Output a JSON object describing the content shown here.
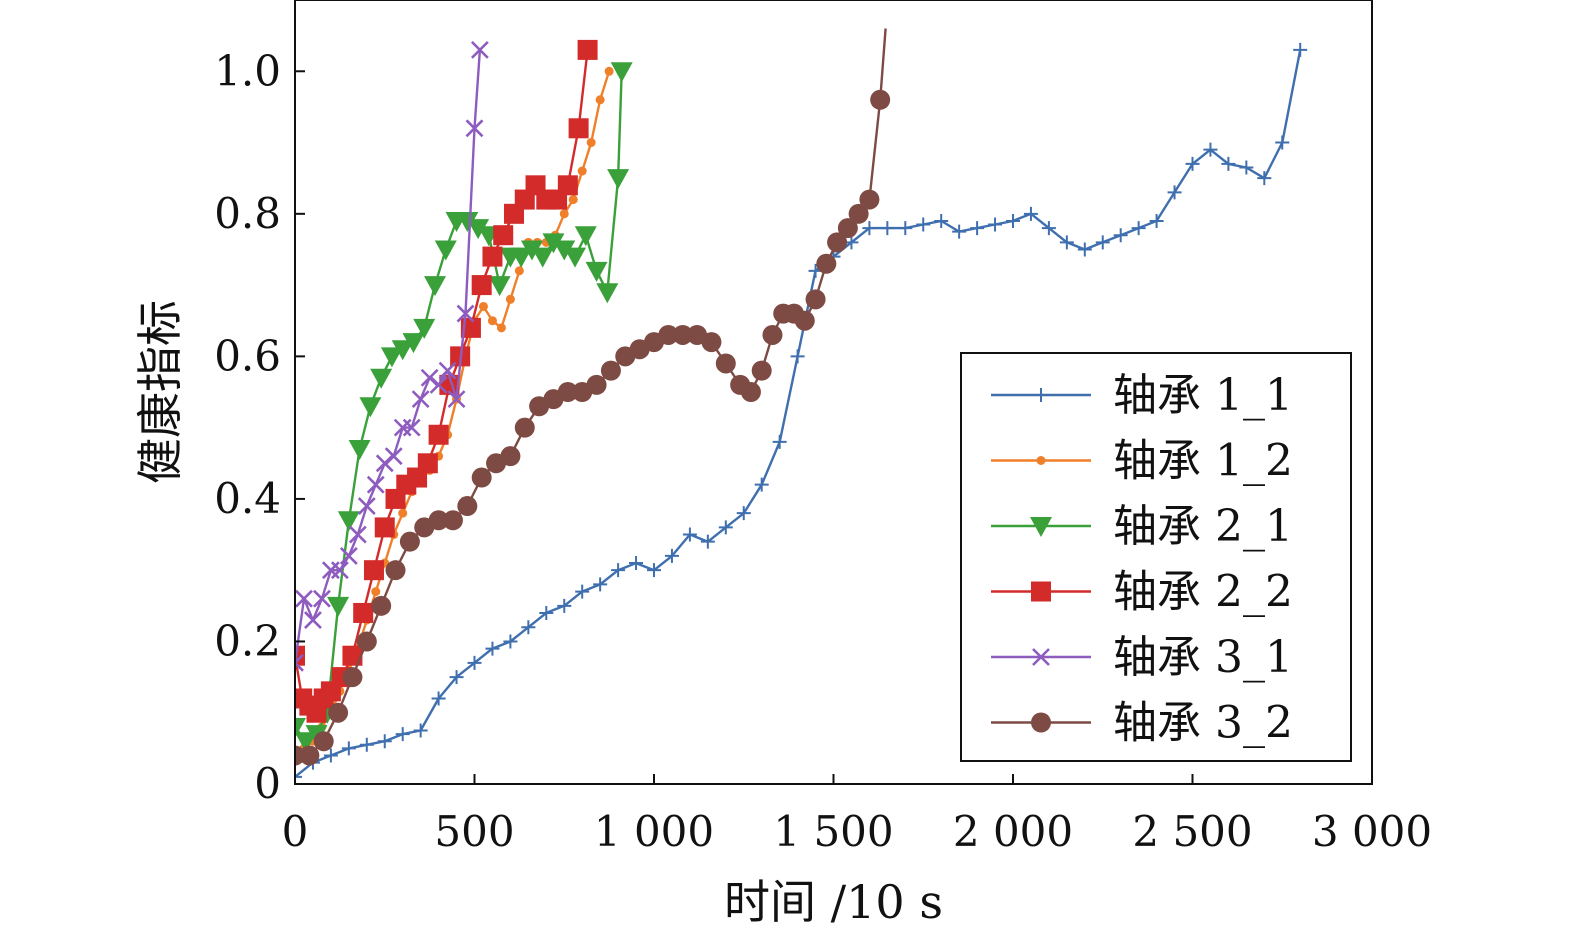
{
  "chart_data": {
    "type": "line",
    "title": "",
    "xlabel": "时间 /10 s",
    "ylabel": "健康指标",
    "xlim": [
      0,
      3000
    ],
    "ylim": [
      0,
      1.1
    ],
    "xticks": [
      0,
      500,
      1000,
      1500,
      2000,
      2500,
      3000
    ],
    "xtick_labels": [
      "0",
      "500",
      "1 000",
      "1 500",
      "2 000",
      "2 500",
      "3 000"
    ],
    "yticks": [
      0,
      0.2,
      0.4,
      0.6,
      0.8,
      1.0
    ],
    "ytick_labels": [
      "0",
      "0.2",
      "0.4",
      "0.6",
      "0.8",
      "1.0"
    ],
    "legend_position": "lower-right",
    "grid": false,
    "series": [
      {
        "name": "轴承 1_1",
        "color": "#3f6fae",
        "marker": "plus",
        "x": [
          0,
          50,
          100,
          150,
          200,
          250,
          300,
          350,
          400,
          450,
          500,
          550,
          600,
          650,
          700,
          750,
          800,
          850,
          900,
          950,
          1000,
          1050,
          1100,
          1150,
          1200,
          1250,
          1300,
          1350,
          1400,
          1450,
          1500,
          1550,
          1600,
          1650,
          1700,
          1750,
          1800,
          1850,
          1900,
          1950,
          2000,
          2050,
          2100,
          2150,
          2200,
          2250,
          2300,
          2350,
          2400,
          2450,
          2500,
          2550,
          2600,
          2650,
          2700,
          2750,
          2800
        ],
        "y": [
          0.01,
          0.03,
          0.04,
          0.05,
          0.055,
          0.06,
          0.07,
          0.075,
          0.12,
          0.15,
          0.17,
          0.19,
          0.2,
          0.22,
          0.24,
          0.25,
          0.27,
          0.28,
          0.3,
          0.31,
          0.3,
          0.32,
          0.35,
          0.34,
          0.36,
          0.38,
          0.42,
          0.48,
          0.6,
          0.72,
          0.74,
          0.76,
          0.78,
          0.78,
          0.78,
          0.785,
          0.79,
          0.775,
          0.78,
          0.785,
          0.79,
          0.8,
          0.78,
          0.76,
          0.75,
          0.76,
          0.77,
          0.78,
          0.79,
          0.83,
          0.87,
          0.89,
          0.87,
          0.865,
          0.85,
          0.9,
          1.03
        ]
      },
      {
        "name": "轴承 1_2",
        "color": "#f07f2a",
        "marker": "dot",
        "x": [
          0,
          25,
          50,
          75,
          100,
          125,
          150,
          175,
          200,
          225,
          250,
          275,
          300,
          325,
          350,
          375,
          400,
          425,
          450,
          475,
          500,
          525,
          550,
          575,
          600,
          625,
          650,
          675,
          700,
          725,
          750,
          775,
          800,
          825,
          850,
          875
        ],
        "y": [
          0.04,
          0.05,
          0.06,
          0.08,
          0.1,
          0.13,
          0.16,
          0.19,
          0.23,
          0.27,
          0.31,
          0.35,
          0.38,
          0.41,
          0.43,
          0.44,
          0.46,
          0.49,
          0.54,
          0.6,
          0.65,
          0.67,
          0.65,
          0.64,
          0.68,
          0.72,
          0.76,
          0.76,
          0.76,
          0.77,
          0.8,
          0.82,
          0.86,
          0.9,
          0.96,
          1.0
        ]
      },
      {
        "name": "轴承 2_1",
        "color": "#3aa13a",
        "marker": "triangle-down",
        "x": [
          0,
          30,
          60,
          90,
          120,
          150,
          180,
          210,
          240,
          270,
          300,
          330,
          360,
          390,
          420,
          450,
          480,
          510,
          540,
          570,
          600,
          630,
          660,
          690,
          720,
          750,
          780,
          810,
          840,
          870,
          900,
          910
        ],
        "y": [
          0.08,
          0.06,
          0.07,
          0.1,
          0.25,
          0.37,
          0.47,
          0.53,
          0.57,
          0.6,
          0.61,
          0.62,
          0.64,
          0.7,
          0.75,
          0.79,
          0.79,
          0.78,
          0.77,
          0.7,
          0.74,
          0.74,
          0.75,
          0.74,
          0.76,
          0.75,
          0.74,
          0.77,
          0.72,
          0.69,
          0.85,
          1.0
        ]
      },
      {
        "name": "轴承 2_2",
        "color": "#d32a2a",
        "marker": "square",
        "x": [
          0,
          20,
          40,
          60,
          80,
          100,
          130,
          160,
          190,
          220,
          250,
          280,
          310,
          340,
          370,
          400,
          430,
          460,
          490,
          520,
          550,
          580,
          610,
          640,
          670,
          700,
          730,
          760,
          790,
          815
        ],
        "y": [
          0.18,
          0.12,
          0.11,
          0.1,
          0.12,
          0.13,
          0.15,
          0.18,
          0.24,
          0.3,
          0.36,
          0.4,
          0.42,
          0.43,
          0.45,
          0.49,
          0.56,
          0.6,
          0.64,
          0.7,
          0.74,
          0.77,
          0.8,
          0.82,
          0.84,
          0.82,
          0.82,
          0.84,
          0.92,
          1.03
        ]
      },
      {
        "name": "轴承 3_1",
        "color": "#8e5cbf",
        "marker": "x",
        "x": [
          0,
          25,
          50,
          75,
          100,
          125,
          150,
          175,
          200,
          225,
          250,
          275,
          300,
          325,
          350,
          375,
          400,
          425,
          450,
          475,
          500,
          515
        ],
        "y": [
          0.17,
          0.26,
          0.23,
          0.26,
          0.3,
          0.3,
          0.32,
          0.35,
          0.39,
          0.42,
          0.45,
          0.46,
          0.5,
          0.5,
          0.54,
          0.57,
          0.56,
          0.58,
          0.54,
          0.66,
          0.92,
          1.03
        ]
      },
      {
        "name": "轴承 3_2",
        "color": "#7d4b44",
        "marker": "circle",
        "x": [
          0,
          40,
          80,
          120,
          160,
          200,
          240,
          280,
          320,
          360,
          400,
          440,
          480,
          520,
          560,
          600,
          640,
          680,
          720,
          760,
          800,
          840,
          880,
          920,
          960,
          1000,
          1040,
          1080,
          1120,
          1160,
          1200,
          1240,
          1270,
          1300,
          1330,
          1360,
          1390,
          1420,
          1450,
          1480,
          1510,
          1540,
          1570,
          1600,
          1630,
          1645
        ],
        "y": [
          0.04,
          0.04,
          0.06,
          0.1,
          0.15,
          0.2,
          0.25,
          0.3,
          0.34,
          0.36,
          0.37,
          0.37,
          0.39,
          0.43,
          0.45,
          0.46,
          0.5,
          0.53,
          0.54,
          0.55,
          0.55,
          0.56,
          0.58,
          0.6,
          0.61,
          0.62,
          0.63,
          0.63,
          0.63,
          0.62,
          0.59,
          0.56,
          0.55,
          0.58,
          0.63,
          0.66,
          0.66,
          0.65,
          0.68,
          0.73,
          0.76,
          0.78,
          0.8,
          0.82,
          0.96,
          1.06
        ]
      }
    ]
  }
}
